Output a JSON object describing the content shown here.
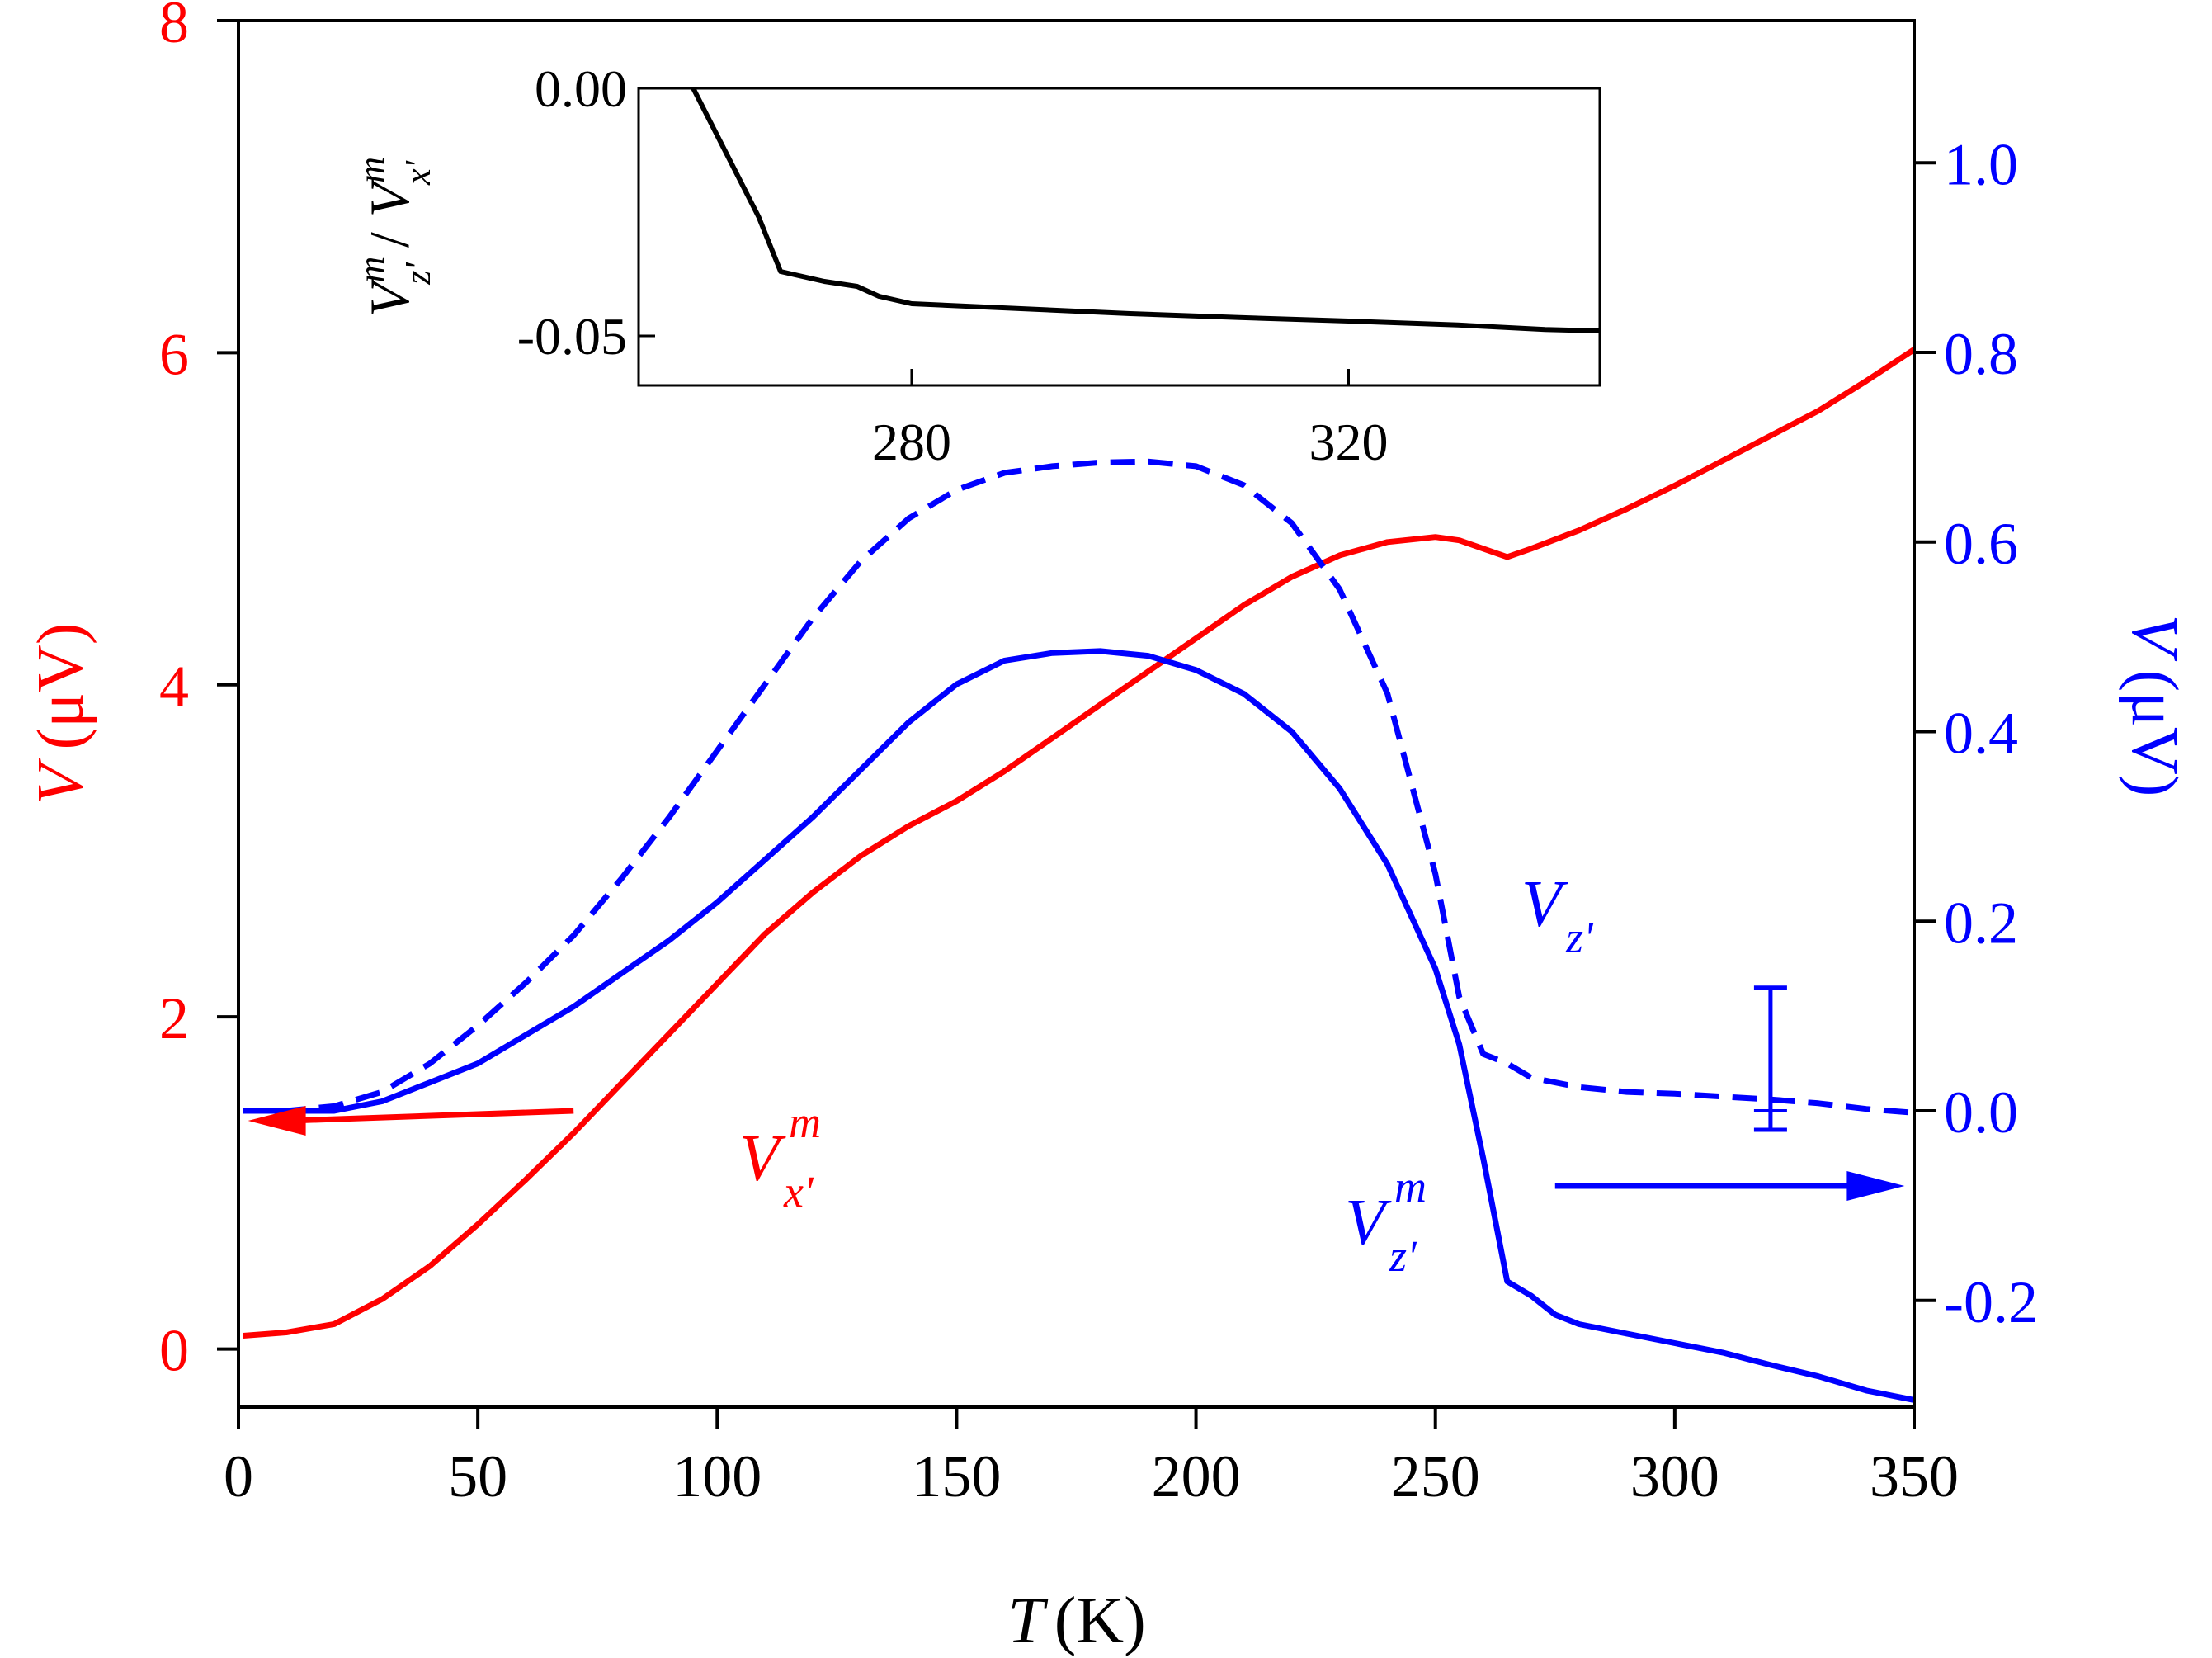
{
  "chart_data": {
    "type": "line",
    "xlabel": {
      "symbol": "T",
      "unit": "(K)"
    },
    "ylabel_left": {
      "symbol": "V",
      "unit": "(μV)",
      "color": "#ff0000"
    },
    "ylabel_right": {
      "symbol": "V",
      "unit": "(μV)",
      "color": "#0000ff"
    },
    "xlim": [
      0,
      350
    ],
    "ylim_left": [
      -0.35,
      8
    ],
    "ylim_right": [
      -0.3125,
      1.15
    ],
    "x_ticks": [
      "0",
      "50",
      "100",
      "150",
      "200",
      "250",
      "300",
      "350"
    ],
    "y_left_ticks": [
      "0",
      "2",
      "4",
      "6",
      "8"
    ],
    "y_right_ticks": [
      "-0.2",
      "0.0",
      "0.2",
      "0.4",
      "0.6",
      "0.8",
      "1.0"
    ],
    "colors": {
      "red": "#ff0000",
      "blue": "#0000ff",
      "black": "#000000"
    },
    "series": [
      {
        "name": "V_x'^m",
        "axis": "left",
        "color": "#ff0000",
        "style": "solid",
        "label": {
          "base": "V",
          "sup": "m",
          "sub": "x'"
        },
        "x": [
          1,
          10,
          20,
          30,
          40,
          50,
          60,
          70,
          80,
          90,
          100,
          110,
          120,
          130,
          140,
          150,
          160,
          170,
          180,
          190,
          200,
          210,
          220,
          230,
          240,
          250,
          255,
          260,
          265,
          270,
          280,
          290,
          300,
          310,
          320,
          330,
          340,
          350
        ],
        "y": [
          0.08,
          0.1,
          0.15,
          0.3,
          0.5,
          0.75,
          1.02,
          1.3,
          1.6,
          1.9,
          2.2,
          2.5,
          2.75,
          2.97,
          3.15,
          3.3,
          3.48,
          3.68,
          3.88,
          4.08,
          4.28,
          4.48,
          4.65,
          4.78,
          4.86,
          4.89,
          4.87,
          4.82,
          4.77,
          4.82,
          4.93,
          5.06,
          5.2,
          5.35,
          5.5,
          5.65,
          5.83,
          6.02
        ]
      },
      {
        "name": "V_z'^m",
        "axis": "right",
        "color": "#0000ff",
        "style": "solid",
        "label": {
          "base": "V",
          "sup": "m",
          "sub": "z'"
        },
        "x": [
          1,
          10,
          20,
          30,
          40,
          50,
          60,
          70,
          80,
          90,
          100,
          110,
          120,
          130,
          140,
          150,
          160,
          170,
          180,
          190,
          200,
          210,
          220,
          230,
          240,
          250,
          255,
          260,
          265,
          270,
          275,
          280,
          290,
          300,
          310,
          320,
          330,
          340,
          350
        ],
        "y": [
          0.0,
          0.0,
          0.0,
          0.01,
          0.03,
          0.05,
          0.08,
          0.11,
          0.145,
          0.18,
          0.22,
          0.265,
          0.31,
          0.36,
          0.41,
          0.45,
          0.475,
          0.483,
          0.485,
          0.48,
          0.465,
          0.44,
          0.4,
          0.34,
          0.26,
          0.15,
          0.07,
          -0.05,
          -0.18,
          -0.195,
          -0.215,
          -0.225,
          -0.235,
          -0.245,
          -0.255,
          -0.268,
          -0.28,
          -0.295,
          -0.305
        ]
      },
      {
        "name": "V_z'",
        "axis": "right",
        "color": "#0000ff",
        "style": "dashed",
        "label": {
          "base": "V",
          "sup": "",
          "sub": "z'"
        },
        "x": [
          1,
          10,
          20,
          30,
          40,
          50,
          60,
          70,
          80,
          90,
          100,
          110,
          120,
          130,
          140,
          150,
          160,
          170,
          180,
          190,
          200,
          210,
          220,
          230,
          240,
          250,
          255,
          260,
          265,
          270,
          280,
          290,
          300,
          310,
          320,
          330,
          340,
          350
        ],
        "y": [
          0.0,
          0.0,
          0.005,
          0.02,
          0.05,
          0.09,
          0.135,
          0.185,
          0.245,
          0.31,
          0.38,
          0.45,
          0.52,
          0.58,
          0.625,
          0.655,
          0.673,
          0.68,
          0.684,
          0.685,
          0.68,
          0.66,
          0.62,
          0.55,
          0.44,
          0.25,
          0.12,
          0.06,
          0.05,
          0.035,
          0.025,
          0.02,
          0.018,
          0.015,
          0.012,
          0.008,
          0.002,
          -0.002
        ]
      }
    ],
    "error_bar": {
      "x": 320,
      "y": 0.0,
      "yerr_low": -0.02,
      "yerr_high": 0.13,
      "axis": "right",
      "color": "#0000ff"
    },
    "arrows": [
      {
        "points": "left",
        "color": "#ff0000",
        "x_from": 70,
        "x_to": 2
      },
      {
        "points": "right",
        "color": "#0000ff",
        "x_from": 275,
        "x_to": 348
      }
    ],
    "inset": {
      "type": "line",
      "ylabel": "V_z'^m / V_x'^m",
      "xlim": [
        255,
        343
      ],
      "ylim": [
        -0.06,
        0.0
      ],
      "x_ticks": [
        "280",
        "320"
      ],
      "y_ticks": [
        "0.00",
        "-0.05"
      ],
      "x": [
        260,
        263,
        266,
        268,
        270,
        272,
        275,
        277,
        280,
        290,
        300,
        310,
        320,
        330,
        338,
        343
      ],
      "y": [
        0.0,
        -0.013,
        -0.026,
        -0.037,
        -0.038,
        -0.039,
        -0.04,
        -0.042,
        -0.0435,
        -0.0445,
        -0.0455,
        -0.0463,
        -0.047,
        -0.0478,
        -0.0487,
        -0.049
      ]
    }
  }
}
